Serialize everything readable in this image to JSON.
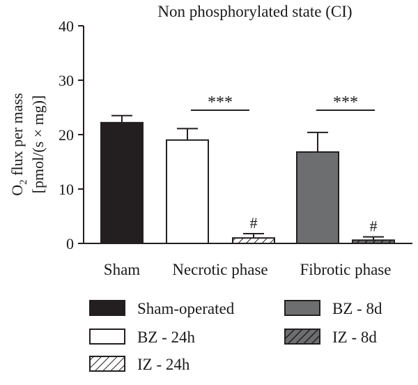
{
  "chart_data": {
    "type": "bar",
    "title": "Non phosphorylated state (CI)",
    "ylabel": {
      "line1_main": "O",
      "line1_sub": "2",
      "line1_rest": " flux per mass",
      "line2": "[pmol/(s × mg)]"
    },
    "ylim": [
      0,
      40
    ],
    "yticks": [
      0,
      10,
      20,
      30,
      40
    ],
    "groups": [
      "Sham",
      "Necrotic phase",
      "Fibrotic phase"
    ],
    "series": [
      {
        "name": "Sham-operated",
        "group": "Sham",
        "value": 22.2,
        "error": 1.3,
        "fill": "#231f20",
        "pattern": "solid"
      },
      {
        "name": "BZ - 24h",
        "group": "Necrotic phase",
        "value": 19.0,
        "error": 2.1,
        "fill": "#ffffff",
        "pattern": "solid"
      },
      {
        "name": "IZ - 24h",
        "group": "Necrotic phase",
        "value": 1.0,
        "error": 0.8,
        "fill": "#ffffff",
        "pattern": "hatch-light",
        "annotation": "#"
      },
      {
        "name": "BZ - 8d",
        "group": "Fibrotic phase",
        "value": 16.8,
        "error": 3.6,
        "fill": "#6d6e70",
        "pattern": "solid"
      },
      {
        "name": "IZ - 8d",
        "group": "Fibrotic phase",
        "value": 0.6,
        "error": 0.6,
        "fill": "#6d6e70",
        "pattern": "hatch-dark",
        "annotation": "#"
      }
    ],
    "significance": [
      {
        "group": "Necrotic phase",
        "label": "***"
      },
      {
        "group": "Fibrotic phase",
        "label": "***"
      }
    ],
    "legend_position": "bottom",
    "grid": false
  }
}
